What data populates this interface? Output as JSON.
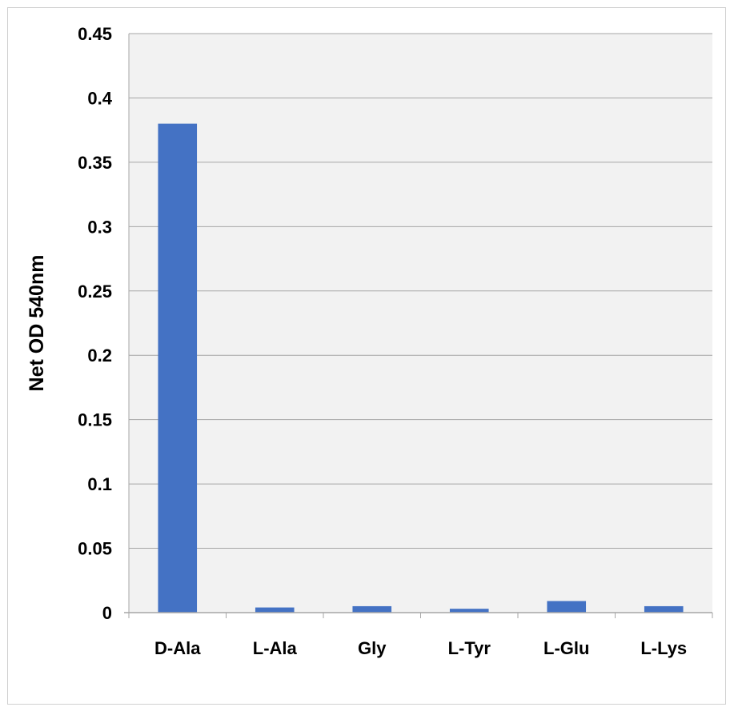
{
  "chart_data": {
    "type": "bar",
    "title": "",
    "xlabel": "",
    "ylabel": "Net OD 540nm",
    "ylim": [
      0,
      0.45
    ],
    "yticks": [
      0,
      0.05,
      0.1,
      0.15,
      0.2,
      0.25,
      0.3,
      0.35,
      0.4,
      0.45
    ],
    "ytick_labels": [
      "0",
      "0.05",
      "0.1",
      "0.15",
      "0.2",
      "0.25",
      "0.3",
      "0.35",
      "0.4",
      "0.45"
    ],
    "categories": [
      "D-Ala",
      "L-Ala",
      "Gly",
      "L-Tyr",
      "L-Glu",
      "L-Lys"
    ],
    "values": [
      0.38,
      0.004,
      0.005,
      0.003,
      0.009,
      0.005
    ],
    "grid": true,
    "legend": "none",
    "colors": {
      "bar": "#4472c4",
      "plot_background": "#f2f2f2",
      "gridline": "#a6a6a6",
      "axis": "#a6a6a6"
    }
  }
}
